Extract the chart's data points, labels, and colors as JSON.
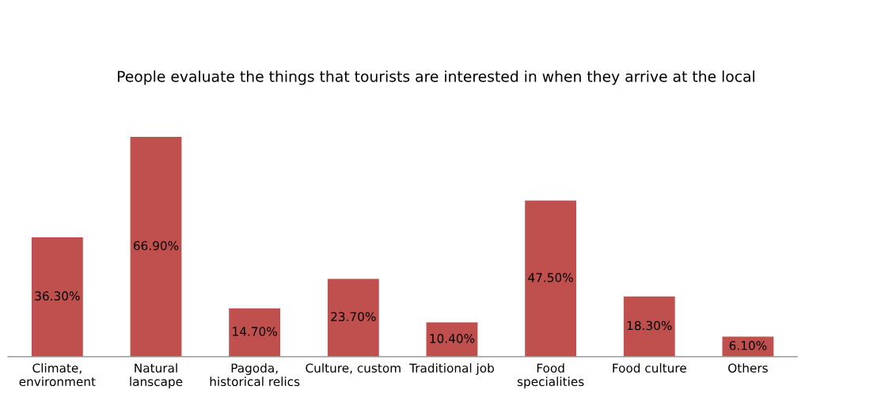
{
  "chart_data": {
    "type": "bar",
    "title": "People evaluate the things that tourists are interested in when they arrive at the local",
    "categories": [
      "Climate,\nenvironment",
      "Natural\nlanscape",
      "Pagoda,\nhistorical relics",
      "Culture, custom",
      "Traditional job",
      "Food\nspecialities",
      "Food culture",
      "Others"
    ],
    "values": [
      36.3,
      66.9,
      14.7,
      23.7,
      10.4,
      47.5,
      18.3,
      6.1
    ],
    "value_labels": [
      "36.30%",
      "66.90%",
      "14.70%",
      "23.70%",
      "10.40%",
      "47.50%",
      "18.30%",
      "6.10%"
    ],
    "color": "#c0504d",
    "grid": false,
    "legend": false
  }
}
